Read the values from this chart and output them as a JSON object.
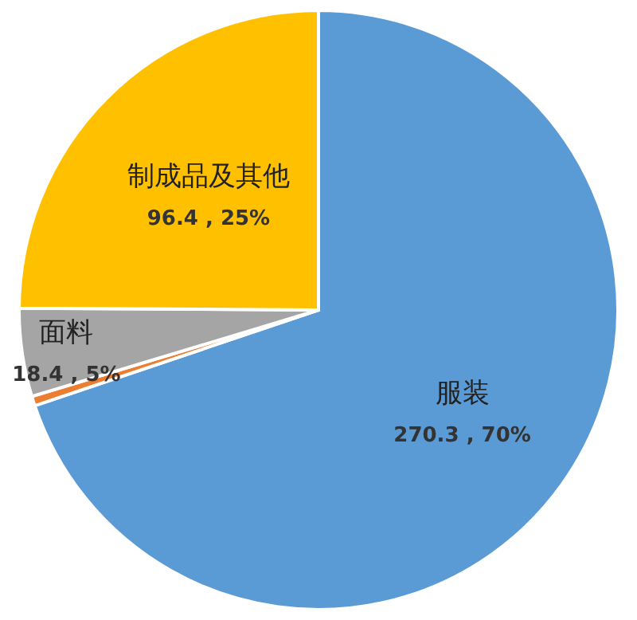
{
  "chart_data": {
    "type": "pie",
    "categories": [
      "服装",
      null,
      "面料",
      "制成品及其他"
    ],
    "values": [
      270.3,
      2,
      18.4,
      96.4
    ],
    "colors": [
      "#5b9bd5",
      "#ed7d31",
      "#a5a5a5",
      "#ffc000"
    ],
    "value_labels": [
      "270.3 , 70%",
      null,
      "18.4 , 5%",
      "96.4 , 25%"
    ],
    "legend": false
  }
}
